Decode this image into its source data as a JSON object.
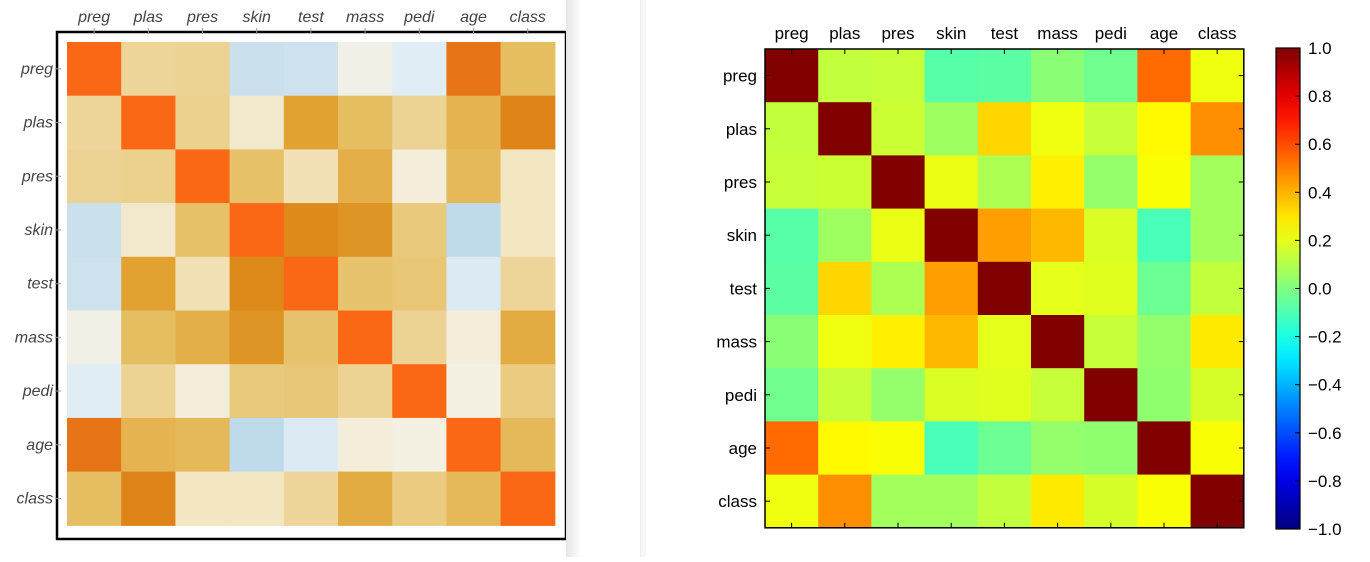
{
  "chart_data": [
    {
      "type": "heatmap",
      "colorscale": "orange-blue",
      "categories": [
        "preg",
        "plas",
        "pres",
        "skin",
        "test",
        "mass",
        "pedi",
        "age",
        "class"
      ],
      "values": [
        [
          1.0,
          0.13,
          0.14,
          -0.08,
          -0.07,
          0.02,
          -0.03,
          0.54,
          0.22
        ],
        [
          0.13,
          1.0,
          0.15,
          0.06,
          0.33,
          0.22,
          0.14,
          0.26,
          0.47
        ],
        [
          0.14,
          0.15,
          1.0,
          0.21,
          0.09,
          0.28,
          0.04,
          0.24,
          0.07
        ],
        [
          -0.08,
          0.06,
          0.21,
          1.0,
          0.44,
          0.39,
          0.18,
          -0.11,
          0.07
        ],
        [
          -0.07,
          0.33,
          0.09,
          0.44,
          1.0,
          0.2,
          0.19,
          -0.04,
          0.13
        ],
        [
          0.02,
          0.22,
          0.28,
          0.39,
          0.2,
          1.0,
          0.14,
          0.04,
          0.29
        ],
        [
          -0.03,
          0.14,
          0.04,
          0.18,
          0.19,
          0.14,
          1.0,
          0.03,
          0.17
        ],
        [
          0.54,
          0.26,
          0.24,
          -0.11,
          -0.04,
          0.04,
          0.03,
          1.0,
          0.24
        ],
        [
          0.22,
          0.47,
          0.07,
          0.07,
          0.13,
          0.29,
          0.17,
          0.24,
          1.0
        ]
      ]
    },
    {
      "type": "heatmap",
      "colorscale": "jet",
      "categories": [
        "preg",
        "plas",
        "pres",
        "skin",
        "test",
        "mass",
        "pedi",
        "age",
        "class"
      ],
      "values": [
        [
          1.0,
          0.13,
          0.14,
          -0.08,
          -0.07,
          0.02,
          -0.03,
          0.54,
          0.22
        ],
        [
          0.13,
          1.0,
          0.15,
          0.06,
          0.33,
          0.22,
          0.14,
          0.26,
          0.47
        ],
        [
          0.14,
          0.15,
          1.0,
          0.21,
          0.09,
          0.28,
          0.04,
          0.24,
          0.07
        ],
        [
          -0.08,
          0.06,
          0.21,
          1.0,
          0.44,
          0.39,
          0.18,
          -0.11,
          0.07
        ],
        [
          -0.07,
          0.33,
          0.09,
          0.44,
          1.0,
          0.2,
          0.19,
          -0.04,
          0.13
        ],
        [
          0.02,
          0.22,
          0.28,
          0.39,
          0.2,
          1.0,
          0.14,
          0.04,
          0.29
        ],
        [
          -0.03,
          0.14,
          0.04,
          0.18,
          0.19,
          0.14,
          1.0,
          0.03,
          0.17
        ],
        [
          0.54,
          0.26,
          0.24,
          -0.11,
          -0.04,
          0.04,
          0.03,
          1.0,
          0.24
        ],
        [
          0.22,
          0.47,
          0.07,
          0.07,
          0.13,
          0.29,
          0.17,
          0.24,
          1.0
        ]
      ],
      "colorbar": {
        "range": [
          -1.0,
          1.0
        ],
        "tick_labels": [
          "1.0",
          "0.8",
          "0.6",
          "0.4",
          "0.2",
          "0.0",
          "−0.2",
          "−0.4",
          "−0.6",
          "−0.8",
          "−1.0"
        ]
      }
    }
  ]
}
